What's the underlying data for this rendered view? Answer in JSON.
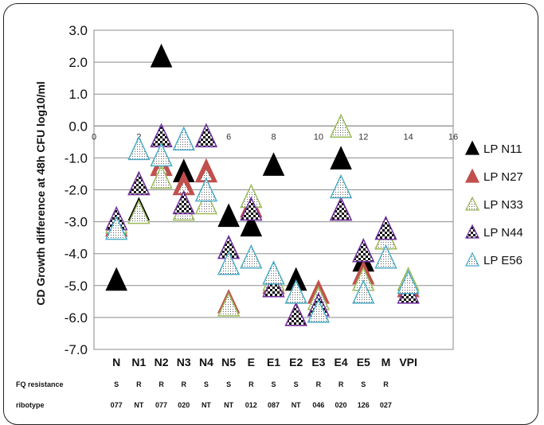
{
  "chart_data": {
    "type": "scatter",
    "ylabel": "CD Growth difference at 48h CFU log10/ml",
    "ylim": [
      -7,
      3
    ],
    "y_ticks": [
      "3.0",
      "2.0",
      "1.0",
      "0.0",
      "-1.0",
      "-2.0",
      "-3.0",
      "-4.0",
      "-5.0",
      "-6.0",
      "-7.0"
    ],
    "xlim": [
      0,
      16
    ],
    "x_ticks": [
      "0",
      "2",
      "4",
      "6",
      "8",
      "10",
      "12",
      "14",
      "16"
    ],
    "grid": true,
    "legend_position": "right",
    "categories": [
      "N",
      "N1",
      "N2",
      "N3",
      "N4",
      "N5",
      "E",
      "E1",
      "E2",
      "E3",
      "E4",
      "E5",
      "M",
      "VPI"
    ],
    "series": [
      {
        "name": "LP N11",
        "color": "#000000",
        "x": [
          1,
          2,
          3,
          4,
          6,
          7,
          8,
          9,
          11,
          12
        ],
        "y": [
          -4.8,
          -2.6,
          2.2,
          -1.4,
          -2.8,
          -3.1,
          -1.2,
          -4.8,
          -1.0,
          -4.2
        ]
      },
      {
        "name": "LP N27",
        "color": "#c0504d",
        "x": [
          1,
          2,
          3,
          4,
          5,
          6,
          7,
          8,
          9,
          10,
          11,
          12,
          13,
          14
        ],
        "y": [
          -3.1,
          -1.8,
          -1.2,
          -1.8,
          -1.4,
          -5.5,
          -2.5,
          -4.9,
          -5.9,
          -5.2,
          -2.6,
          -4.6,
          -3.5,
          -5.0
        ]
      },
      {
        "name": "LP N33",
        "color": "#9bbb59",
        "x": [
          1,
          2,
          3,
          4,
          5,
          6,
          7,
          8,
          9,
          10,
          11,
          12,
          13,
          14
        ],
        "y": [
          -3.0,
          -2.7,
          -1.6,
          -2.6,
          -2.4,
          -5.6,
          -2.2,
          -4.8,
          -5.2,
          -5.4,
          0.0,
          -4.8,
          -3.5,
          -4.8
        ]
      },
      {
        "name": "LP N44",
        "color": "#7030a0",
        "x": [
          1,
          2,
          3,
          4,
          5,
          6,
          7,
          8,
          9,
          10,
          11,
          12,
          13,
          14
        ],
        "y": [
          -2.9,
          -1.8,
          -0.3,
          -2.4,
          -0.3,
          -3.8,
          -2.6,
          -5.0,
          -5.9,
          -5.6,
          -2.6,
          -3.9,
          -3.2,
          -5.2
        ]
      },
      {
        "name": "LP E56",
        "color": "#4bacc6",
        "x": [
          1,
          2,
          3,
          4,
          5,
          6,
          7,
          8,
          9,
          10,
          11,
          12,
          13,
          14
        ],
        "y": [
          -3.2,
          -0.7,
          -0.9,
          -0.4,
          -2.0,
          -4.3,
          -4.1,
          -4.6,
          -5.2,
          -5.8,
          -1.9,
          -5.2,
          -4.1,
          -4.9
        ]
      }
    ]
  },
  "table": {
    "fq_label": "FQ resistance",
    "ribotype_label": "ribotype",
    "fq": [
      "S",
      "R",
      "R",
      "R",
      "S",
      "S",
      "R",
      "S",
      "S",
      "R",
      "R",
      "S",
      "R",
      ""
    ],
    "ribotype": [
      "077",
      "NT",
      "077",
      "020",
      "NT",
      "NT",
      "012",
      "087",
      "NT",
      "046",
      "020",
      "126",
      "027",
      ""
    ]
  }
}
